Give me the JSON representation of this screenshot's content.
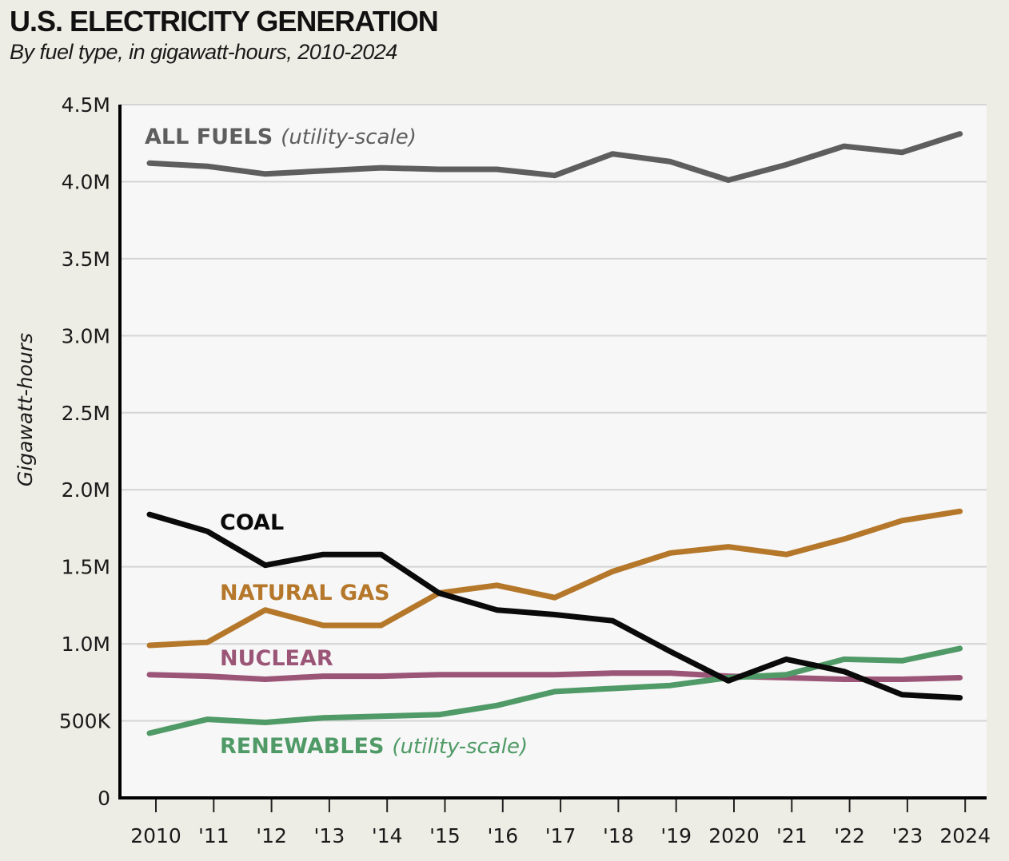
{
  "chart_data": {
    "type": "line",
    "title": "U.S. ELECTRICITY GENERATION",
    "subtitle": "By fuel type, in gigawatt-hours, 2010-2024",
    "xlabel": "",
    "ylabel": "Gigawatt-hours",
    "ylim": [
      0,
      4500000
    ],
    "grid": true,
    "legend": "inline-labels",
    "x": [
      2010,
      2011,
      2012,
      2013,
      2014,
      2015,
      2016,
      2017,
      2018,
      2019,
      2020,
      2021,
      2022,
      2023,
      2024
    ],
    "x_tick_labels": [
      "2010",
      "'11",
      "'12",
      "'13",
      "'14",
      "'15",
      "'16",
      "'17",
      "'18",
      "'19",
      "2020",
      "'21",
      "'22",
      "'23",
      "2024"
    ],
    "y_ticks": [
      0,
      500000,
      1000000,
      1500000,
      2000000,
      2500000,
      3000000,
      3500000,
      4000000,
      4500000
    ],
    "y_tick_labels": [
      "0",
      "500K",
      "1.0M",
      "1.5M",
      "2.0M",
      "2.5M",
      "3.0M",
      "3.5M",
      "4.0M",
      "4.5M"
    ],
    "series": [
      {
        "name": "ALL FUELS",
        "note": "(utility-scale)",
        "color": "#5e5e5e",
        "values": [
          4120000,
          4100000,
          4050000,
          4070000,
          4090000,
          4080000,
          4080000,
          4040000,
          4180000,
          4130000,
          4010000,
          4110000,
          4230000,
          4190000,
          4310000
        ]
      },
      {
        "name": "COAL",
        "note": "",
        "color": "#0a0a0a",
        "values": [
          1840000,
          1730000,
          1510000,
          1580000,
          1580000,
          1330000,
          1220000,
          1190000,
          1150000,
          950000,
          760000,
          900000,
          820000,
          670000,
          650000
        ]
      },
      {
        "name": "NATURAL GAS",
        "note": "",
        "color": "#b5782b",
        "values": [
          990000,
          1010000,
          1220000,
          1120000,
          1120000,
          1330000,
          1380000,
          1300000,
          1470000,
          1590000,
          1630000,
          1580000,
          1680000,
          1800000,
          1860000
        ]
      },
      {
        "name": "NUCLEAR",
        "note": "",
        "color": "#9b5577",
        "values": [
          800000,
          790000,
          770000,
          790000,
          790000,
          800000,
          800000,
          800000,
          810000,
          810000,
          790000,
          780000,
          770000,
          770000,
          780000
        ]
      },
      {
        "name": "RENEWABLES",
        "note": "(utility-scale)",
        "color": "#4f9a66",
        "values": [
          420000,
          510000,
          490000,
          520000,
          530000,
          540000,
          600000,
          690000,
          710000,
          730000,
          780000,
          800000,
          900000,
          890000,
          970000
        ]
      }
    ]
  }
}
